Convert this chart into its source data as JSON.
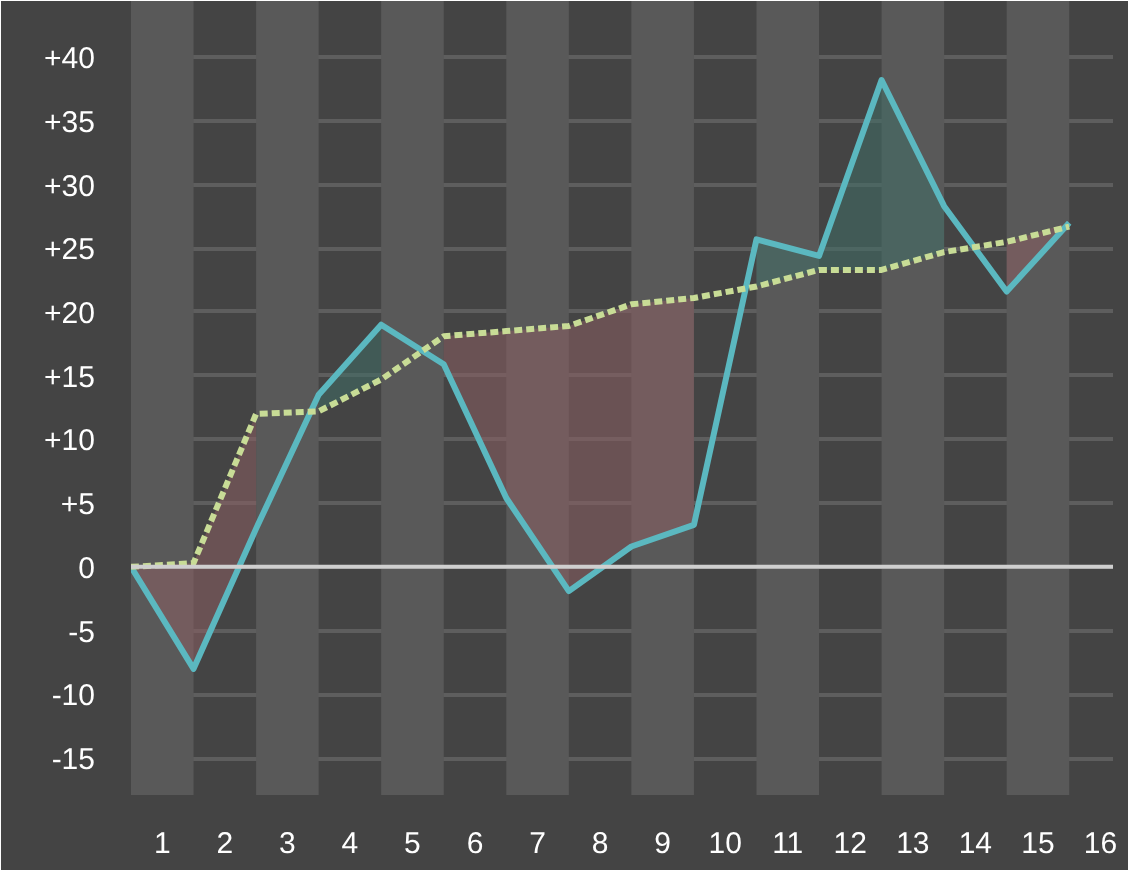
{
  "chart_data": {
    "type": "line",
    "x": [
      0.5,
      1.5,
      2.5,
      3.5,
      4.5,
      5.5,
      6.5,
      7.5,
      8.5,
      9.5,
      10.5,
      11.5,
      12.5,
      13.5,
      14.5,
      15.5
    ],
    "series": [
      {
        "color": "#5bb8c0",
        "line_style": "solid",
        "values": [
          0,
          -8,
          3,
          13.5,
          19,
          15.9,
          5.4,
          -1.9,
          1.6,
          3.3,
          25.7,
          24.4,
          38.2,
          28.3,
          21.6,
          27
        ],
        "lower": [
          null,
          null,
          null,
          12.2,
          14.7,
          null,
          null,
          null,
          null,
          null,
          22,
          23.3,
          23.3,
          24.7,
          null,
          null
        ],
        "upper": [
          null,
          null,
          null,
          13.5,
          19,
          null,
          null,
          null,
          null,
          null,
          25.7,
          24.4,
          38.2,
          28.3,
          null,
          null
        ]
      },
      {
        "color": "#c8dc96",
        "line_style": "dashed",
        "values": [
          0,
          0.3,
          12,
          12.2,
          14.7,
          18.1,
          18.5,
          18.9,
          20.6,
          21.1,
          22,
          23.3,
          23.3,
          24.7,
          25.5,
          26.7
        ],
        "lower": [
          0,
          -8,
          3,
          null,
          null,
          15.9,
          5.4,
          -1.9,
          1.6,
          3.3,
          null,
          null,
          null,
          null,
          21.6,
          26.7
        ],
        "upper": [
          0,
          0.3,
          12,
          null,
          null,
          18.1,
          18.5,
          18.9,
          20.6,
          21.1,
          null,
          null,
          null,
          null,
          25.5,
          27
        ]
      }
    ],
    "xlim": [
      0.5,
      16.2
    ],
    "xticks": [
      1,
      2,
      3,
      4,
      5,
      6,
      7,
      8,
      9,
      10,
      11,
      12,
      13,
      14,
      15,
      16
    ],
    "ylim": [
      -17.9,
      44.4
    ],
    "yticks": [
      -15,
      -10,
      -5,
      0,
      {
        "value": 5,
        "label": "+5"
      },
      {
        "value": 10,
        "label": "+10"
      },
      {
        "value": 15,
        "label": "+15"
      },
      {
        "value": 20,
        "label": "+20"
      },
      {
        "value": 25,
        "label": "+25"
      },
      {
        "value": 30,
        "label": "+30"
      },
      {
        "value": 35,
        "label": "+35"
      },
      {
        "value": 40,
        "label": "+40"
      }
    ],
    "ref_lines": [
      {
        "axis": "y",
        "value": 0,
        "color": "#cfcfcf"
      }
    ],
    "bands": [
      {
        "axis": "x",
        "from": 0.5,
        "to": 1.5,
        "color": "#595959"
      },
      {
        "axis": "x",
        "from": 2.5,
        "to": 3.5,
        "color": "#595959"
      },
      {
        "axis": "x",
        "from": 4.5,
        "to": 5.5,
        "color": "#595959"
      },
      {
        "axis": "x",
        "from": 6.5,
        "to": 7.5,
        "color": "#595959"
      },
      {
        "axis": "x",
        "from": 8.5,
        "to": 9.5,
        "color": "#595959"
      },
      {
        "axis": "x",
        "from": 10.5,
        "to": 11.5,
        "color": "#595959"
      },
      {
        "axis": "x",
        "from": 12.5,
        "to": 13.5,
        "color": "#595959"
      },
      {
        "axis": "x",
        "from": 14.5,
        "to": 15.5,
        "color": "#595959"
      }
    ],
    "grid": "y",
    "marker": "none"
  }
}
